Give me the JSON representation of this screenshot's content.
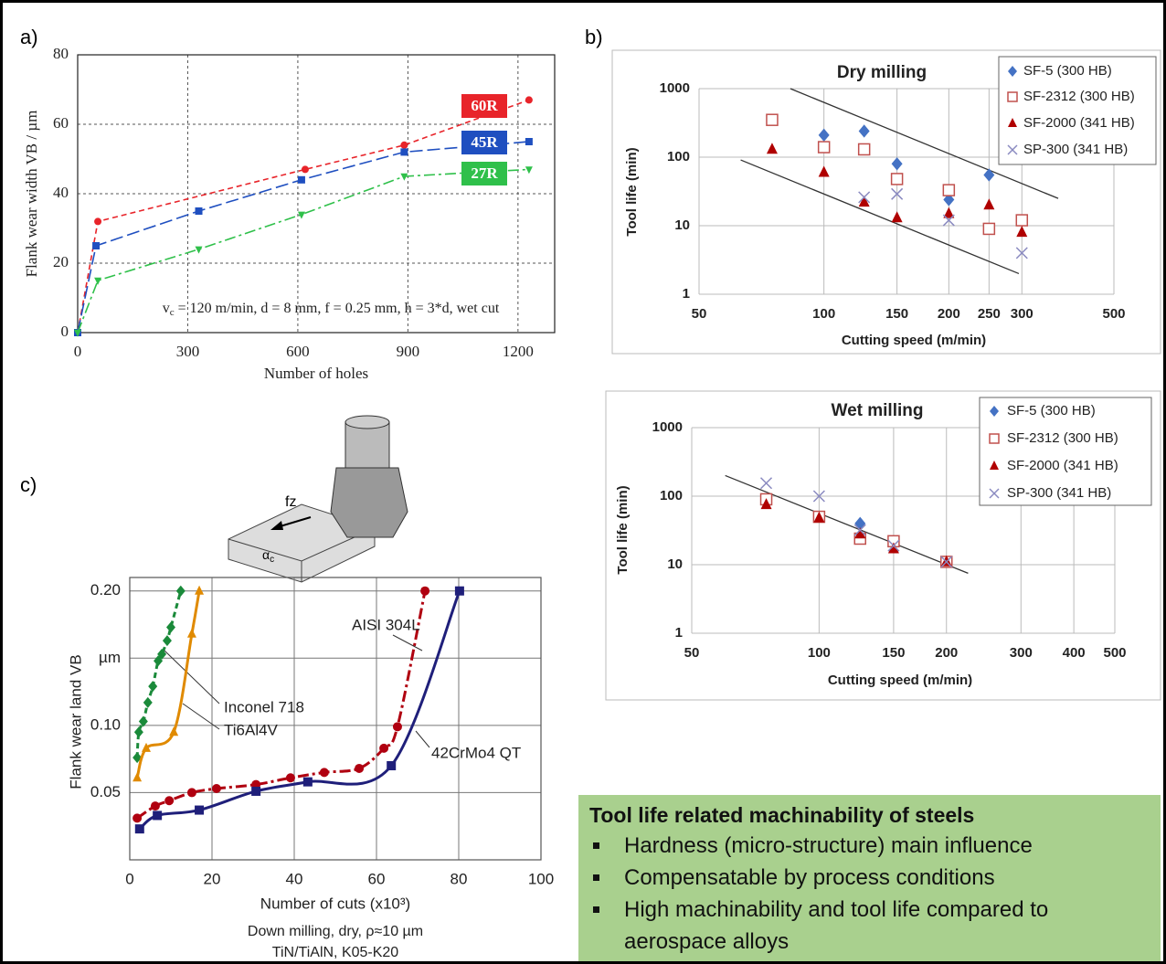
{
  "panel_labels": [
    "a)",
    "b)",
    "c)"
  ],
  "diagram": {
    "feed_label": "fz",
    "angle_symbol": "α",
    "angle_subscript": "c"
  },
  "summary": {
    "title": "Tool life related machinability of steels",
    "bullets": [
      "Hardness (micro-structure) main influence",
      "Compensatable by process conditions",
      "High machinability and tool life compared to aerospace alloys"
    ]
  },
  "chart_data": [
    {
      "type": "line",
      "xlabel": "Number of holes",
      "ylabel": "Flank wear width VB / µm",
      "xlim": [
        0,
        1300
      ],
      "xticks": [
        0,
        300,
        600,
        900,
        1200
      ],
      "ylim": [
        0,
        80
      ],
      "yticks": [
        0,
        20,
        40,
        60,
        80
      ],
      "grid": true,
      "annotation": {
        "symbol": "v",
        "subscript": "c",
        "text": " = 120 m/min, d = 8 mm, f = 0.25 mm, h = 3*d, wet cut"
      },
      "series": [
        {
          "name": "60R",
          "color": "#e8242a",
          "marker": "circle",
          "line_style": "dashed",
          "x": [
            0,
            55,
            620,
            890,
            1230
          ],
          "values": [
            0,
            32,
            47,
            54,
            67
          ]
        },
        {
          "name": "45R",
          "color": "#1f4fc0",
          "marker": "square",
          "line_style": "longdash",
          "x": [
            0,
            50,
            330,
            610,
            890,
            1230
          ],
          "values": [
            0,
            25,
            35,
            44,
            52,
            55
          ]
        },
        {
          "name": "27R",
          "color": "#2fc04a",
          "marker": "triangle-down",
          "line_style": "dashdot",
          "x": [
            0,
            55,
            330,
            610,
            890,
            1230
          ],
          "values": [
            0,
            15,
            24,
            34,
            45,
            47
          ]
        }
      ]
    },
    {
      "type": "scatter",
      "title": "Dry milling",
      "xlabel": "Cutting speed (m/min)",
      "ylabel": "Tool life (min)",
      "xscale": "log",
      "yscale": "log",
      "xlim": [
        50,
        500
      ],
      "xticks": [
        50,
        100,
        150,
        200,
        250,
        300,
        500
      ],
      "ylim": [
        1,
        1000
      ],
      "yticks": [
        1,
        10,
        100,
        1000
      ],
      "grid": true,
      "legend": "top-right",
      "series": [
        {
          "name": "SF-5 (300 HB)",
          "color": "#4472c4",
          "marker": "diamond",
          "x": [
            100,
            125,
            150,
            200,
            250
          ],
          "values": [
            210,
            240,
            80,
            24,
            55
          ]
        },
        {
          "name": "SF-2312 (300 HB)",
          "color": "#c0504d",
          "marker": "open-square",
          "x": [
            75,
            100,
            125,
            150,
            200,
            250,
            300
          ],
          "values": [
            350,
            140,
            130,
            48,
            33,
            9,
            12
          ]
        },
        {
          "name": "SF-2000 (341 HB)",
          "color": "#b00000",
          "marker": "triangle",
          "x": [
            75,
            100,
            125,
            150,
            200,
            250,
            300
          ],
          "values": [
            130,
            60,
            22,
            13,
            15,
            20,
            8
          ]
        },
        {
          "name": "SP-300 (341 HB)",
          "color": "#8a8ac0",
          "marker": "x",
          "x": [
            125,
            150,
            200,
            300
          ],
          "values": [
            26,
            29,
            12,
            4
          ]
        }
      ],
      "trend_lines": [
        {
          "x": [
            83,
            367
          ],
          "y": [
            1000,
            25
          ]
        },
        {
          "x": [
            63,
            295
          ],
          "y": [
            91,
            2
          ]
        }
      ]
    },
    {
      "type": "scatter",
      "title": "Wet milling",
      "xlabel": "Cutting speed (m/min)",
      "ylabel": "Tool life (min)",
      "xscale": "log",
      "yscale": "log",
      "xlim": [
        50,
        500
      ],
      "xticks": [
        50,
        100,
        150,
        200,
        300,
        400,
        500
      ],
      "ylim": [
        1,
        1000
      ],
      "yticks": [
        1,
        10,
        100,
        1000
      ],
      "grid": true,
      "legend": "top-right",
      "series": [
        {
          "name": "SF-5 (300 HB)",
          "color": "#4472c4",
          "marker": "diamond",
          "x": [
            125
          ],
          "values": [
            40
          ]
        },
        {
          "name": "SF-2312 (300 HB)",
          "color": "#c0504d",
          "marker": "open-square",
          "x": [
            75,
            100,
            125,
            150,
            200
          ],
          "values": [
            90,
            50,
            24,
            22,
            11
          ]
        },
        {
          "name": "SF-2000 (341 HB)",
          "color": "#b00000",
          "marker": "triangle",
          "x": [
            75,
            100,
            125,
            150,
            200
          ],
          "values": [
            75,
            48,
            28,
            17,
            11
          ]
        },
        {
          "name": "SP-300 (341 HB)",
          "color": "#8a8ac0",
          "marker": "x",
          "x": [
            75,
            100,
            125,
            150,
            200
          ],
          "values": [
            155,
            100,
            32,
            19,
            11
          ]
        }
      ],
      "trend_lines": [
        {
          "x": [
            60,
            225
          ],
          "y": [
            200,
            7.5
          ]
        }
      ]
    },
    {
      "type": "line",
      "xlabel": "Number of cuts (x10³)",
      "ylabel": "Flank wear land VB",
      "notes": [
        "Down milling, dry, ρ≈10 µm",
        "TiN/TiAlN, K05-K20"
      ],
      "xlim": [
        0,
        100
      ],
      "xticks": [
        0,
        20,
        40,
        60,
        80,
        100
      ],
      "ylim": [
        0,
        0.21
      ],
      "yticks": [
        0.05,
        {
          "value": 0.1,
          "label": "0.10"
        },
        {
          "value": 0.15,
          "label": "µm"
        },
        {
          "value": 0.2,
          "label": "0.20"
        }
      ],
      "grid": true,
      "series": [
        {
          "name": "Inconel 718",
          "color": "#1a8a3a",
          "marker": "diamond",
          "line_style": "dashed",
          "x": [
            1.8,
            2.2,
            3.3,
            4.4,
            5.6,
            6.9,
            7.8,
            9.1,
            10,
            12.4
          ],
          "values": [
            0.076,
            0.095,
            0.103,
            0.117,
            0.129,
            0.148,
            0.153,
            0.163,
            0.173,
            0.2
          ]
        },
        {
          "name": "Ti6Al4V",
          "color": "#e08a00",
          "marker": "triangle",
          "line_style": "solid",
          "x": [
            1.8,
            4,
            10.7,
            15.1,
            16.9
          ],
          "values": [
            0.061,
            0.083,
            0.095,
            0.168,
            0.2
          ]
        },
        {
          "name": "AISI 304L",
          "color": "#b00010",
          "marker": "circle",
          "line_style": "dashdot",
          "x": [
            1.8,
            6.2,
            9.6,
            15.1,
            21.1,
            30.7,
            39.1,
            47.3,
            55.8,
            61.8,
            65.1,
            71.8
          ],
          "values": [
            0.031,
            0.04,
            0.044,
            0.05,
            0.053,
            0.056,
            0.061,
            0.065,
            0.068,
            0.083,
            0.099,
            0.2
          ]
        },
        {
          "name": "42CrMo4 QT",
          "color": "#1f1f7a",
          "marker": "square",
          "line_style": "solid",
          "x": [
            2.4,
            6.7,
            16.9,
            30.7,
            43.3,
            63.6,
            80.2
          ],
          "values": [
            0.023,
            0.033,
            0.037,
            0.051,
            0.058,
            0.07,
            0.2
          ]
        }
      ]
    }
  ]
}
